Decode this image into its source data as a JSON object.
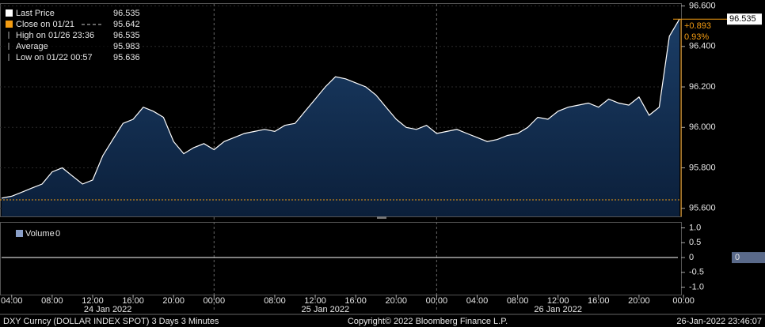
{
  "chart_data": [
    {
      "type": "area",
      "legend": [
        {
          "label": "Last Price",
          "value": 96.535
        },
        {
          "label": "Close on 01/21",
          "value": 95.642
        },
        {
          "label": "High on 01/26 23:36",
          "value": 96.535
        },
        {
          "label": "Average",
          "value": 95.983
        },
        {
          "label": "Low on 01/22 00:57",
          "value": 95.636
        }
      ],
      "x": [
        "2022-01-24 03:00",
        "2022-01-24 04:00",
        "2022-01-24 05:00",
        "2022-01-24 06:00",
        "2022-01-24 07:00",
        "2022-01-24 08:00",
        "2022-01-24 09:00",
        "2022-01-24 10:00",
        "2022-01-24 11:00",
        "2022-01-24 12:00",
        "2022-01-24 13:00",
        "2022-01-24 14:00",
        "2022-01-24 15:00",
        "2022-01-24 16:00",
        "2022-01-24 17:00",
        "2022-01-24 18:00",
        "2022-01-24 19:00",
        "2022-01-24 20:00",
        "2022-01-24 21:00",
        "2022-01-24 22:00",
        "2022-01-24 23:00",
        "2022-01-25 00:00",
        "2022-01-25 01:00",
        "2022-01-25 02:00",
        "2022-01-25 05:00",
        "2022-01-25 06:00",
        "2022-01-25 07:00",
        "2022-01-25 08:00",
        "2022-01-25 09:00",
        "2022-01-25 10:00",
        "2022-01-25 11:00",
        "2022-01-25 12:00",
        "2022-01-25 13:00",
        "2022-01-25 14:00",
        "2022-01-25 15:00",
        "2022-01-25 16:00",
        "2022-01-25 17:00",
        "2022-01-25 18:00",
        "2022-01-25 19:00",
        "2022-01-25 20:00",
        "2022-01-25 21:00",
        "2022-01-25 22:00",
        "2022-01-25 23:00",
        "2022-01-26 00:00",
        "2022-01-26 01:00",
        "2022-01-26 02:00",
        "2022-01-26 03:00",
        "2022-01-26 04:00",
        "2022-01-26 05:00",
        "2022-01-26 06:00",
        "2022-01-26 07:00",
        "2022-01-26 08:00",
        "2022-01-26 09:00",
        "2022-01-26 10:00",
        "2022-01-26 11:00",
        "2022-01-26 12:00",
        "2022-01-26 13:00",
        "2022-01-26 14:00",
        "2022-01-26 15:00",
        "2022-01-26 16:00",
        "2022-01-26 17:00",
        "2022-01-26 18:00",
        "2022-01-26 19:00",
        "2022-01-26 20:00",
        "2022-01-26 21:00",
        "2022-01-26 22:00",
        "2022-01-26 23:00",
        "2022-01-26 23:36"
      ],
      "series": [
        {
          "name": "Last Price",
          "color": "#ffffff",
          "values": [
            95.65,
            95.66,
            95.68,
            95.7,
            95.72,
            95.78,
            95.8,
            95.76,
            95.72,
            95.74,
            95.86,
            95.94,
            96.02,
            96.04,
            96.1,
            96.08,
            96.05,
            95.93,
            95.87,
            95.9,
            95.92,
            95.89,
            95.93,
            95.95,
            95.97,
            95.98,
            95.99,
            95.98,
            96.01,
            96.02,
            96.08,
            96.14,
            96.2,
            96.25,
            96.24,
            96.22,
            96.2,
            96.16,
            96.1,
            96.04,
            96.0,
            95.99,
            96.01,
            95.97,
            95.98,
            95.99,
            95.97,
            95.95,
            95.93,
            95.94,
            95.96,
            95.97,
            96.0,
            96.05,
            96.04,
            96.08,
            96.1,
            96.11,
            96.12,
            96.1,
            96.14,
            96.12,
            96.11,
            96.15,
            96.06,
            96.1,
            96.45,
            96.535
          ]
        }
      ],
      "close_color": "#f39c12",
      "last_label": {
        "value": 96.535,
        "label": "96.535"
      },
      "change": {
        "value": 0.893,
        "label": "+0.893"
      },
      "change_pct": {
        "value": 0.93,
        "label": "0.93%"
      },
      "ylim": [
        95.56,
        96.61
      ],
      "yticks": [
        {
          "value": 95.6,
          "label": "95.600"
        },
        {
          "value": 95.8,
          "label": "95.800"
        },
        {
          "value": 96.0,
          "label": "96.000"
        },
        {
          "value": 96.2,
          "label": "96.200"
        },
        {
          "value": 96.4,
          "label": "96.400"
        },
        {
          "value": 96.6,
          "label": "96.600"
        }
      ],
      "xticks": [
        {
          "value": "2022-01-24 04:00",
          "label": "04:00"
        },
        {
          "value": "2022-01-24 08:00",
          "label": "08:00"
        },
        {
          "value": "2022-01-24 12:00",
          "label": "12:00"
        },
        {
          "value": "2022-01-24 16:00",
          "label": "16:00"
        },
        {
          "value": "2022-01-24 20:00",
          "label": "20:00"
        },
        {
          "value": "2022-01-25 00:00",
          "label": "00:00"
        },
        {
          "value": "2022-01-25 08:00",
          "label": "08:00"
        },
        {
          "value": "2022-01-25 12:00",
          "label": "12:00"
        },
        {
          "value": "2022-01-25 16:00",
          "label": "16:00"
        },
        {
          "value": "2022-01-25 20:00",
          "label": "20:00"
        },
        {
          "value": "2022-01-26 00:00",
          "label": "00:00"
        },
        {
          "value": "2022-01-26 04:00",
          "label": "04:00"
        },
        {
          "value": "2022-01-26 08:00",
          "label": "08:00"
        },
        {
          "value": "2022-01-26 12:00",
          "label": "12:00"
        },
        {
          "value": "2022-01-26 16:00",
          "label": "16:00"
        },
        {
          "value": "2022-01-26 20:00",
          "label": "20:00"
        },
        {
          "value": "2022-01-27 00:00",
          "label": "00:00"
        }
      ],
      "day_labels": [
        "24 Jan 2022",
        "25 Jan 2022",
        "26 Jan 2022"
      ],
      "grid": true
    },
    {
      "type": "line",
      "series": [
        {
          "name": "Volume",
          "color": "#ffffff",
          "value": 0
        }
      ],
      "ylim": [
        -1.25,
        1.2
      ],
      "yticks": [
        {
          "value": -1,
          "label": "-1.0"
        },
        {
          "value": -0.5,
          "label": "-0.5"
        },
        0,
        {
          "value": 0.5,
          "label": "0.5"
        },
        {
          "value": 1,
          "label": "1.0"
        }
      ]
    }
  ],
  "footer": {
    "left": "DXY Curncy (DOLLAR INDEX SPOT) 3 Days 3 Minutes",
    "center": "Copyright© 2022 Bloomberg Finance L.P.",
    "right": "26-Jan-2022 23:46:07"
  }
}
